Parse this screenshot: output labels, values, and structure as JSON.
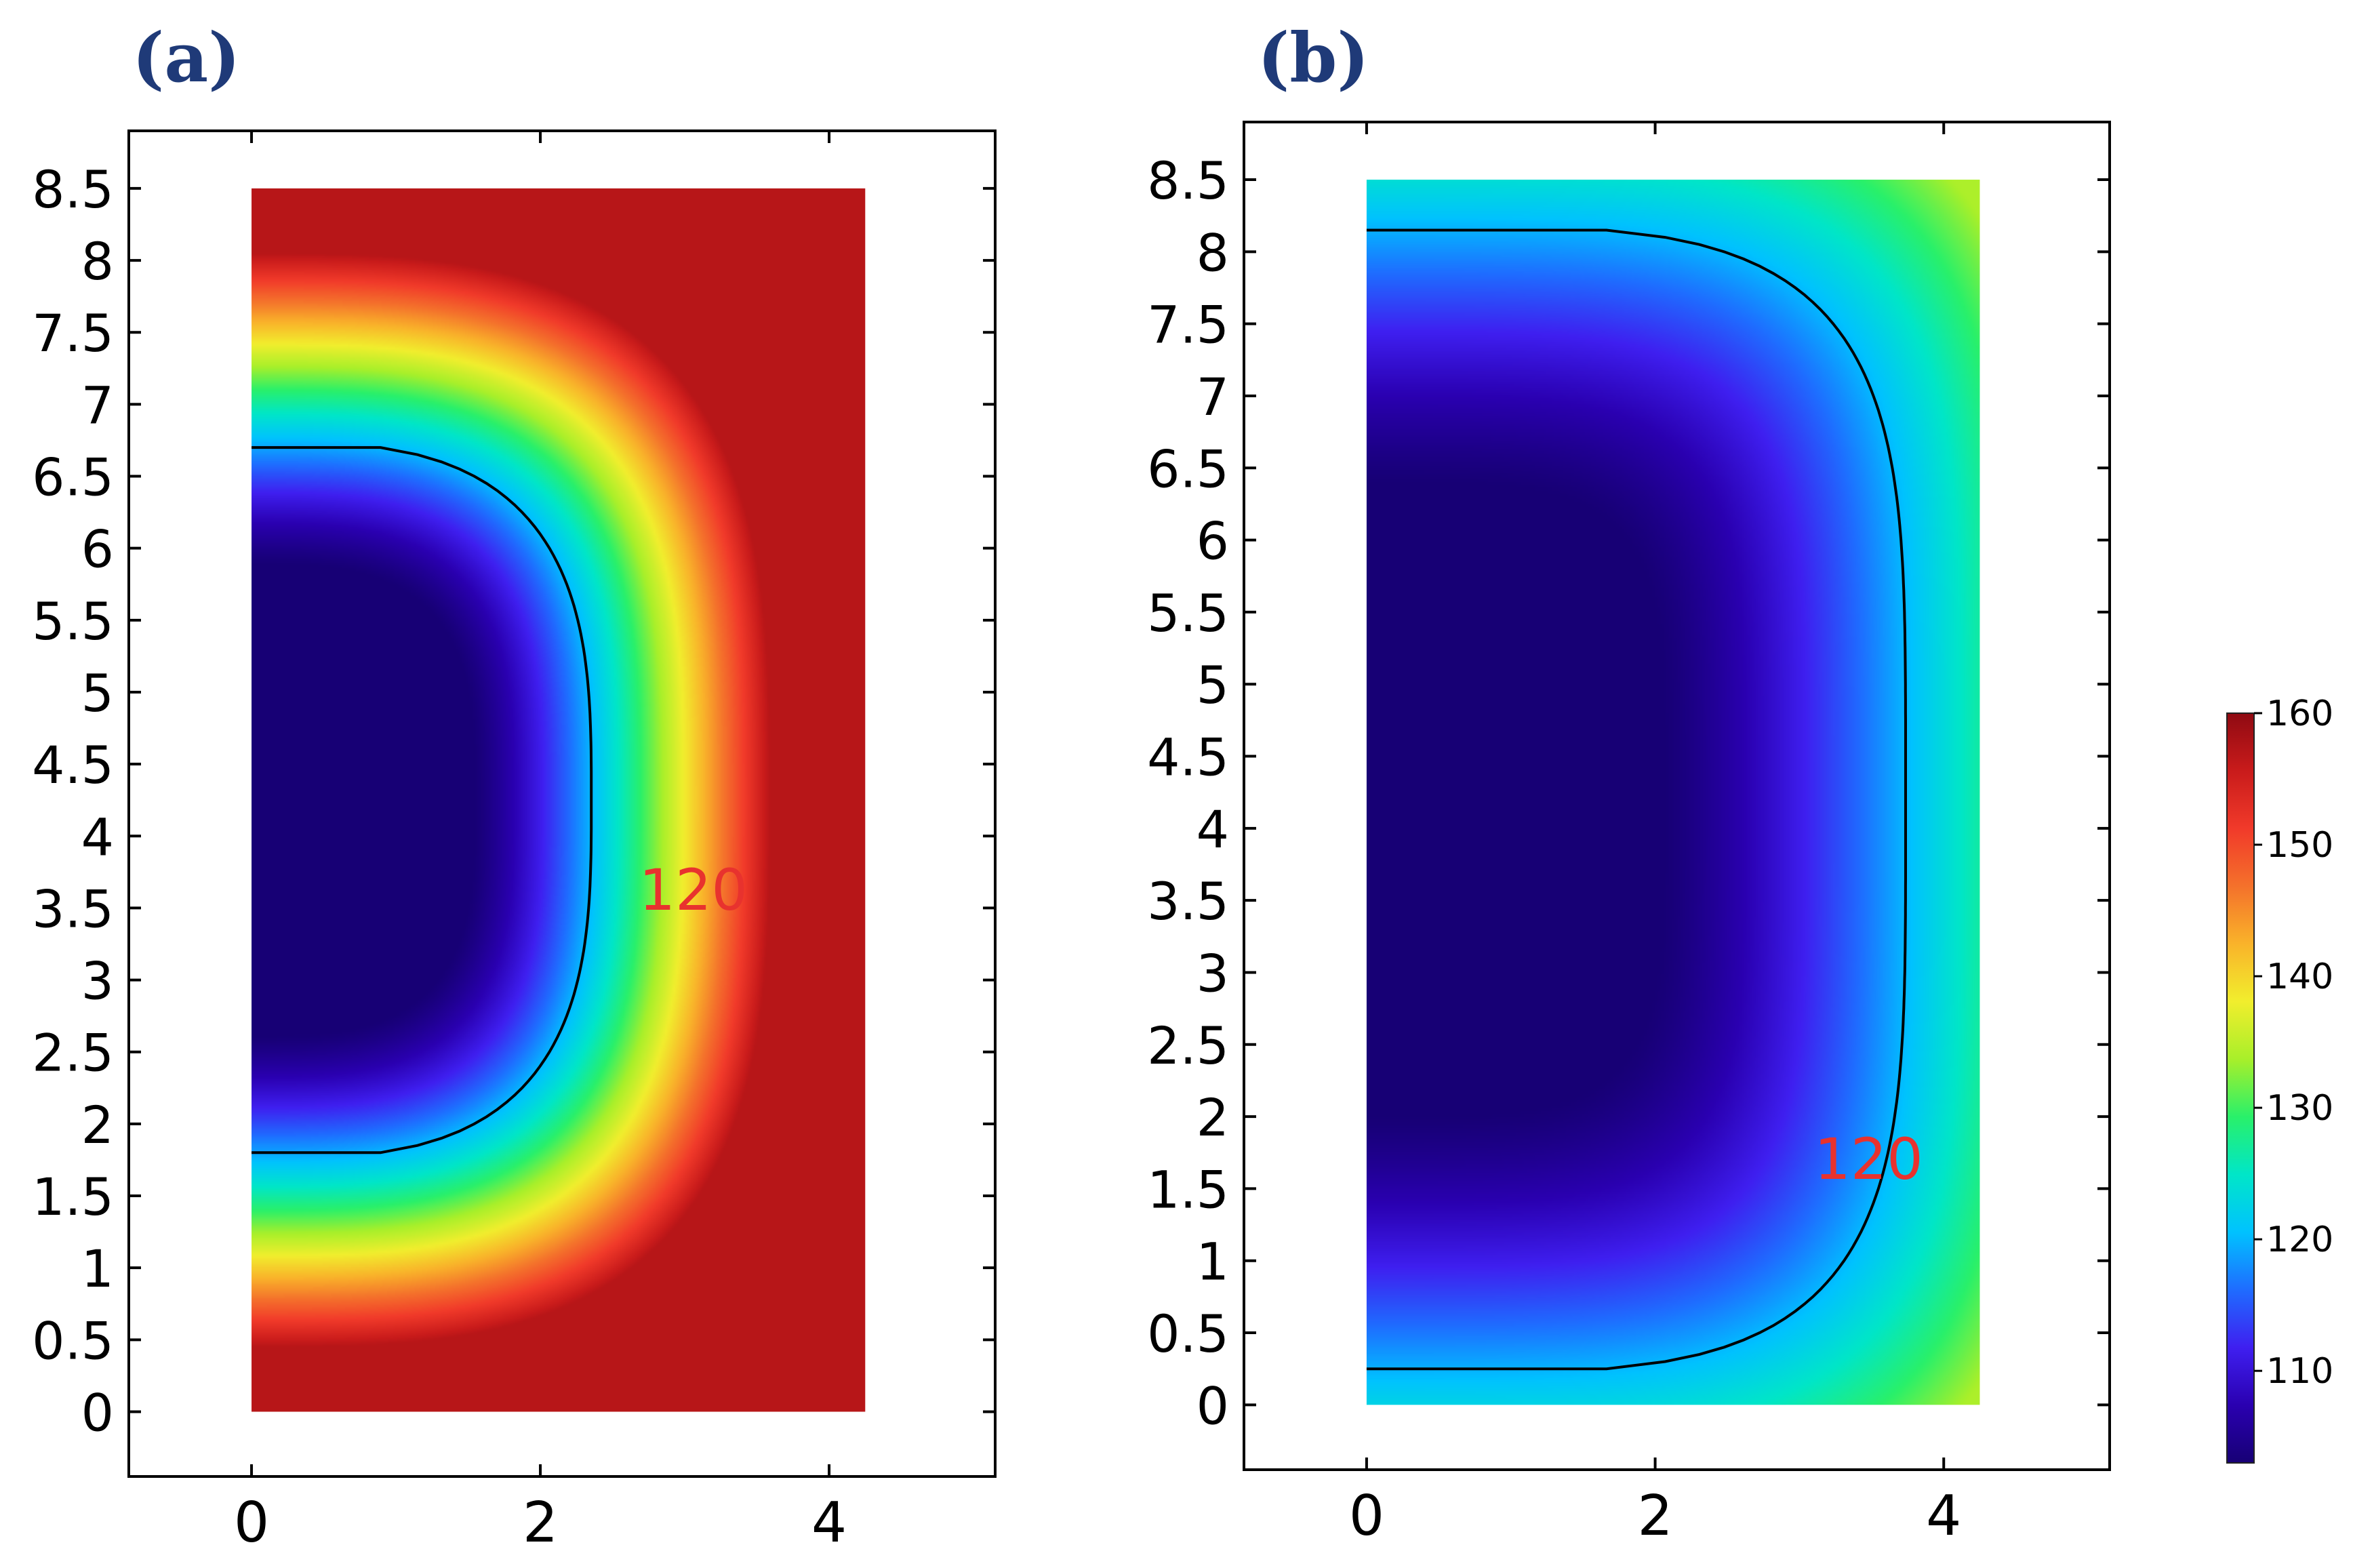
{
  "figure": {
    "colormap": [
      "#170075",
      "#2a00b0",
      "#3f1ff0",
      "#1f6cff",
      "#00c2ff",
      "#00e6c8",
      "#29f06a",
      "#a8ef2a",
      "#f1ee2d",
      "#f9b32a",
      "#f4712b",
      "#f13a2a",
      "#c91b1b",
      "#8f0a12"
    ],
    "contour_color": "#000000",
    "label_color": "#e8322e",
    "panel_label_color": "#1f3a78"
  },
  "chart_data": [
    {
      "type": "heatmap",
      "panel_label": "(a)",
      "title": "",
      "xlabel": "",
      "ylabel": "",
      "xlim": [
        -0.85,
        5.15
      ],
      "ylim": [
        -0.45,
        8.9
      ],
      "x_ticks": [
        0,
        2,
        4
      ],
      "x_tick_labels": [
        "0",
        "2",
        "4"
      ],
      "y_ticks": [
        0,
        0.5,
        1,
        1.5,
        2,
        2.5,
        3,
        3.5,
        4,
        4.5,
        5,
        5.5,
        6,
        6.5,
        7,
        7.5,
        8,
        8.5
      ],
      "y_tick_labels": [
        "0",
        "0.5",
        "1",
        "1.5",
        "2",
        "2.5",
        "3",
        "3.5",
        "4",
        "4.5",
        "5",
        "5.5",
        "6",
        "6.5",
        "7",
        "7.5",
        "8",
        "8.5"
      ],
      "domain": {
        "x": [
          0,
          4.25
        ],
        "y": [
          0,
          8.5
        ]
      },
      "field": {
        "cx": 0,
        "cy": 4.25,
        "a": 3.42,
        "b": 3.62,
        "p": 3.1,
        "t_min": 103,
        "t_max": 157
      },
      "contours": [
        {
          "level": 120,
          "label": "120",
          "label_at": [
            3.06,
            3.62
          ]
        }
      ]
    },
    {
      "type": "heatmap",
      "panel_label": "(b)",
      "title": "",
      "xlabel": "",
      "ylabel": "",
      "xlim": [
        -0.85,
        5.15
      ],
      "ylim": [
        -0.45,
        8.9
      ],
      "x_ticks": [
        0,
        2,
        4
      ],
      "x_tick_labels": [
        "0",
        "2",
        "4"
      ],
      "y_ticks": [
        0,
        0.5,
        1,
        1.5,
        2,
        2.5,
        3,
        3.5,
        4,
        4.5,
        5,
        5.5,
        6,
        6.5,
        7,
        7.5,
        8,
        8.5
      ],
      "y_tick_labels": [
        "0",
        "0.5",
        "1",
        "1.5",
        "2",
        "2.5",
        "3",
        "3.5",
        "4",
        "4.5",
        "5",
        "5.5",
        "6",
        "6.5",
        "7",
        "7.5",
        "8",
        "8.5"
      ],
      "domain": {
        "x": [
          0,
          4.25
        ],
        "y": [
          0,
          8.5
        ]
      },
      "field": {
        "cx": 0,
        "cy": 4.2,
        "a": 4.55,
        "b": 4.85,
        "p": 4.2,
        "t_min": 103,
        "t_max": 134
      },
      "contours": [
        {
          "level": 120,
          "label": "120",
          "label_at": [
            3.48,
            1.7
          ]
        }
      ]
    }
  ],
  "colorbar": {
    "min": 103,
    "max": 160,
    "ticks": [
      110,
      120,
      130,
      140,
      150,
      160
    ],
    "tick_labels": [
      "110",
      "120",
      "130",
      "140",
      "150",
      "160"
    ]
  }
}
